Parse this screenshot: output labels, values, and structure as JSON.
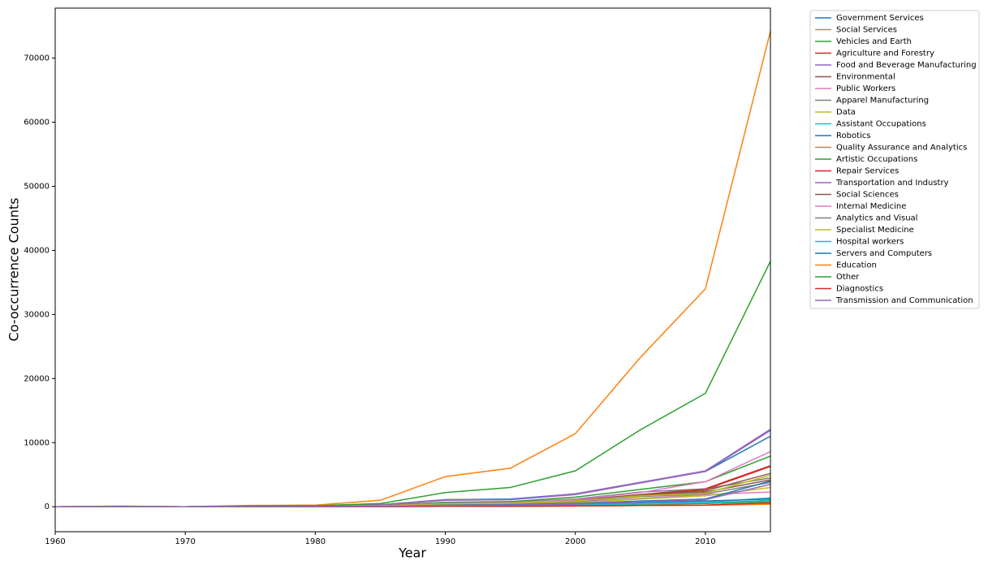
{
  "chart_data": {
    "type": "line",
    "x_label": "Year",
    "y_label": "Co-occurrence Counts",
    "x": [
      1960,
      1965,
      1970,
      1975,
      1980,
      1985,
      1990,
      1995,
      2000,
      2005,
      2010,
      2015
    ],
    "xlim": [
      1960,
      2015
    ],
    "xticks": [
      1960,
      1970,
      1980,
      1990,
      2000,
      2010
    ],
    "ylim": [
      -3900,
      77800
    ],
    "yticks": [
      0,
      10000,
      20000,
      30000,
      40000,
      50000,
      60000,
      70000
    ],
    "legend": "outside-right",
    "series": [
      {
        "name": "Government Services",
        "color": "#1f77b4",
        "values": [
          0,
          20,
          0,
          80,
          100,
          300,
          1100,
          1200,
          2000,
          3800,
          5500,
          11000
        ]
      },
      {
        "name": "Social Services",
        "color": "#ff7f0e",
        "values": [
          0,
          100,
          0,
          200,
          250,
          1000,
          4700,
          6000,
          11400,
          23300,
          34000,
          74200
        ]
      },
      {
        "name": "Vehicles and Earth",
        "color": "#2ca02c",
        "values": [
          0,
          10,
          0,
          50,
          80,
          200,
          700,
          800,
          1500,
          2700,
          3900,
          7900
        ]
      },
      {
        "name": "Agriculture and Forestry",
        "color": "#d62728",
        "values": [
          0,
          10,
          0,
          30,
          50,
          100,
          400,
          500,
          900,
          1900,
          2800,
          6400
        ]
      },
      {
        "name": "Food and Beverage Manufacturing",
        "color": "#9467bd",
        "values": [
          0,
          20,
          0,
          80,
          100,
          300,
          1100,
          1100,
          2000,
          3800,
          5600,
          12100
        ]
      },
      {
        "name": "Environmental",
        "color": "#8c564b",
        "values": [
          0,
          10,
          0,
          30,
          50,
          150,
          500,
          600,
          1000,
          1800,
          2300,
          4200
        ]
      },
      {
        "name": "Public Workers",
        "color": "#e377c2",
        "values": [
          0,
          10,
          0,
          20,
          30,
          100,
          300,
          400,
          700,
          1300,
          1900,
          2300
        ]
      },
      {
        "name": "Apparel Manufacturing",
        "color": "#7f7f7f",
        "values": [
          0,
          10,
          0,
          40,
          60,
          150,
          600,
          700,
          1200,
          2300,
          2800,
          4500
        ]
      },
      {
        "name": "Data",
        "color": "#bcbd22",
        "values": [
          0,
          5,
          0,
          20,
          30,
          80,
          300,
          400,
          600,
          1200,
          1700,
          3000
        ]
      },
      {
        "name": "Assistant Occupations",
        "color": "#17becf",
        "values": [
          0,
          5,
          0,
          10,
          20,
          40,
          150,
          200,
          300,
          500,
          700,
          1400
        ]
      },
      {
        "name": "Robotics",
        "color": "#1f77b4",
        "values": [
          0,
          5,
          0,
          10,
          20,
          50,
          200,
          250,
          400,
          700,
          900,
          1200
        ]
      },
      {
        "name": "Quality Assurance and Analytics",
        "color": "#ff7f0e",
        "values": [
          0,
          2,
          0,
          5,
          10,
          20,
          60,
          80,
          120,
          200,
          250,
          500
        ]
      },
      {
        "name": "Artistic Occupations",
        "color": "#2ca02c",
        "values": [
          0,
          5,
          0,
          10,
          20,
          40,
          150,
          180,
          250,
          400,
          500,
          800
        ]
      },
      {
        "name": "Repair Services",
        "color": "#d62728",
        "values": [
          0,
          10,
          0,
          30,
          50,
          120,
          400,
          500,
          900,
          1800,
          2700,
          6300
        ]
      },
      {
        "name": "Transportation and Industry",
        "color": "#9467bd",
        "values": [
          0,
          20,
          0,
          80,
          100,
          300,
          1000,
          1100,
          1900,
          3700,
          5500,
          11900
        ]
      },
      {
        "name": "Social Sciences",
        "color": "#8c564b",
        "values": [
          0,
          10,
          0,
          30,
          50,
          120,
          450,
          550,
          1000,
          1900,
          2500,
          5200
        ]
      },
      {
        "name": "Internal Medicine",
        "color": "#e377c2",
        "values": [
          0,
          10,
          0,
          40,
          60,
          150,
          500,
          600,
          1100,
          2200,
          3900,
          8600
        ]
      },
      {
        "name": "Analytics and Visual",
        "color": "#7f7f7f",
        "values": [
          0,
          10,
          0,
          30,
          40,
          100,
          400,
          500,
          800,
          1600,
          2000,
          3800
        ]
      },
      {
        "name": "Specialist Medicine",
        "color": "#bcbd22",
        "values": [
          0,
          10,
          0,
          30,
          40,
          100,
          450,
          550,
          900,
          1700,
          2100,
          4900
        ]
      },
      {
        "name": "Hospital workers",
        "color": "#17becf",
        "values": [
          0,
          5,
          0,
          10,
          20,
          40,
          120,
          150,
          250,
          450,
          600,
          1000
        ]
      },
      {
        "name": "Servers and Computers",
        "color": "#1f77b4",
        "values": [
          0,
          5,
          0,
          20,
          30,
          60,
          250,
          300,
          500,
          900,
          1200,
          4000
        ]
      },
      {
        "name": "Education",
        "color": "#ff7f0e",
        "values": [
          0,
          2,
          0,
          5,
          10,
          20,
          50,
          60,
          100,
          180,
          230,
          400
        ]
      },
      {
        "name": "Other",
        "color": "#2ca02c",
        "values": [
          0,
          50,
          0,
          100,
          150,
          500,
          2200,
          3000,
          5600,
          12000,
          17700,
          38300
        ]
      },
      {
        "name": "Diagnostics",
        "color": "#d62728",
        "values": [
          0,
          2,
          0,
          5,
          10,
          20,
          60,
          70,
          110,
          200,
          260,
          600
        ]
      },
      {
        "name": "Transmission and Communication",
        "color": "#9467bd",
        "values": [
          0,
          5,
          0,
          15,
          25,
          60,
          200,
          250,
          400,
          800,
          1100,
          3500
        ]
      }
    ]
  }
}
